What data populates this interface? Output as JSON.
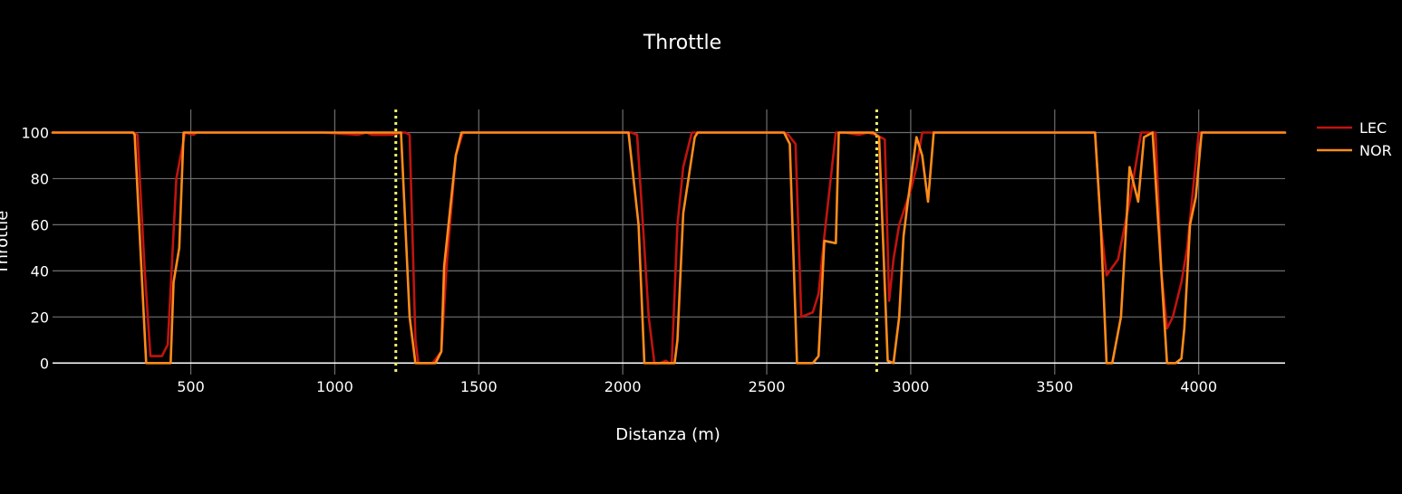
{
  "chart_data": {
    "type": "line",
    "title": "Throttle",
    "xlabel": "Distanza (m)",
    "ylabel": "Throttle",
    "xlim": [
      20,
      4300
    ],
    "ylim": [
      -5,
      110
    ],
    "xticks": [
      500,
      1000,
      1500,
      2000,
      2500,
      3000,
      3500,
      4000
    ],
    "yticks": [
      0,
      20,
      40,
      60,
      80,
      100
    ],
    "grid": true,
    "legend": "right",
    "vlines": [
      {
        "x": 1212,
        "color": "#f2f26a",
        "style": "dotted"
      },
      {
        "x": 2882,
        "color": "#f2f26a",
        "style": "dotted"
      }
    ],
    "series": [
      {
        "name": "LEC",
        "color": "#c0140f",
        "x": [
          20,
          300,
          315,
          340,
          360,
          400,
          420,
          450,
          480,
          510,
          520,
          960,
          1080,
          1110,
          1130,
          1200,
          1230,
          1245,
          1260,
          1280,
          1290,
          1340,
          1370,
          1390,
          1420,
          1445,
          1460,
          2030,
          2050,
          2070,
          2090,
          2110,
          2130,
          2150,
          2160,
          2170,
          2190,
          2210,
          2240,
          2260,
          2560,
          2575,
          2600,
          2620,
          2660,
          2680,
          2700,
          2740,
          2770,
          2820,
          2850,
          2880,
          2910,
          2925,
          2940,
          2960,
          3000,
          3020,
          3040,
          3070,
          3100,
          3640,
          3660,
          3680,
          3720,
          3760,
          3800,
          3830,
          3850,
          3870,
          3890,
          3910,
          3940,
          3960,
          3980,
          4000,
          4300
        ],
        "y": [
          100,
          100,
          99,
          40,
          3,
          3,
          8,
          80,
          100,
          99,
          100,
          100,
          99,
          100,
          99,
          99,
          100,
          100,
          99,
          10,
          0,
          0,
          5,
          45,
          90,
          100,
          100,
          100,
          99,
          60,
          20,
          0,
          0,
          1,
          0,
          0,
          60,
          85,
          100,
          100,
          100,
          99,
          95,
          20,
          22,
          30,
          55,
          100,
          100,
          99,
          100,
          99,
          97,
          27,
          45,
          60,
          75,
          85,
          100,
          100,
          100,
          100,
          60,
          38,
          45,
          70,
          100,
          100,
          100,
          40,
          15,
          20,
          35,
          50,
          75,
          100,
          100
        ]
      },
      {
        "name": "NOR",
        "color": "#ff8c1a",
        "x": [
          20,
          300,
          305,
          345,
          430,
          440,
          460,
          475,
          500,
          520,
          1200,
          1230,
          1260,
          1280,
          1290,
          1350,
          1370,
          1380,
          1420,
          1440,
          1445,
          1460,
          1470,
          2020,
          2055,
          2075,
          2090,
          2180,
          2190,
          2210,
          2250,
          2260,
          2560,
          2580,
          2605,
          2660,
          2680,
          2700,
          2740,
          2750,
          2870,
          2890,
          2920,
          2940,
          2960,
          2975,
          2990,
          3020,
          3040,
          3060,
          3080,
          3110,
          3640,
          3660,
          3680,
          3700,
          3730,
          3760,
          3790,
          3810,
          3840,
          3860,
          3890,
          3920,
          3940,
          3950,
          3970,
          3990,
          4010,
          4300
        ],
        "y": [
          100,
          100,
          99,
          0,
          0,
          35,
          50,
          100,
          100,
          100,
          100,
          100,
          20,
          0,
          0,
          0,
          5,
          42,
          90,
          100,
          100,
          100,
          100,
          100,
          60,
          0,
          0,
          0,
          10,
          65,
          98,
          100,
          100,
          95,
          0,
          0,
          3,
          53,
          52,
          100,
          100,
          98,
          1,
          0,
          20,
          55,
          70,
          98,
          90,
          70,
          100,
          100,
          100,
          60,
          0,
          0,
          20,
          85,
          70,
          98,
          100,
          60,
          0,
          0,
          2,
          15,
          60,
          72,
          100,
          100
        ]
      }
    ]
  }
}
